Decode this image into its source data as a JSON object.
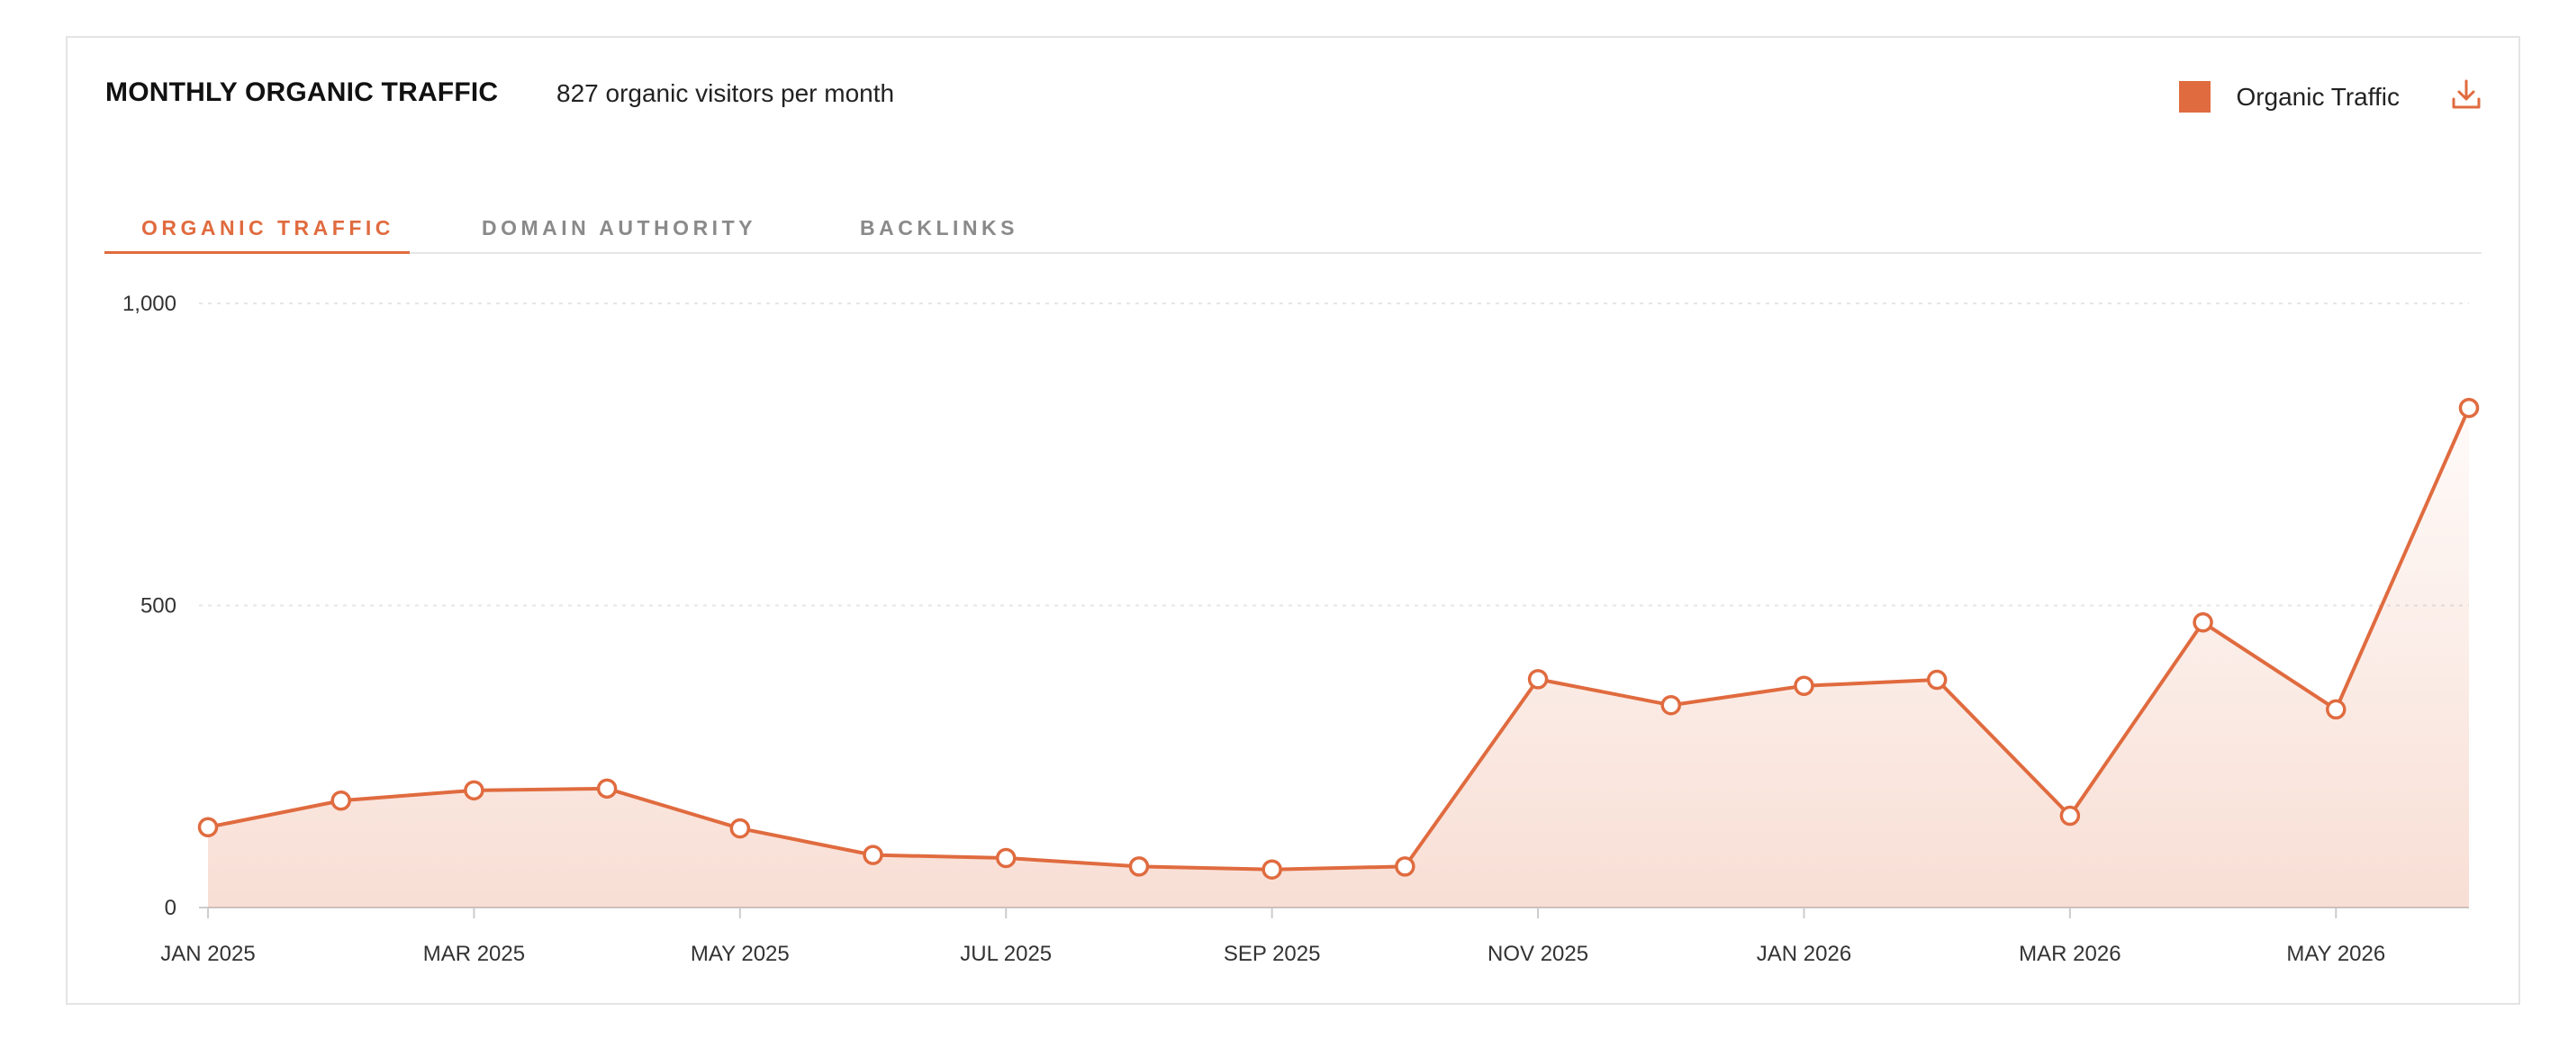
{
  "header": {
    "title": "MONTHLY ORGANIC TRAFFIC",
    "subtitle": "827 organic visitors per month",
    "legend_label": "Organic Traffic",
    "download_icon": "download-icon"
  },
  "tabs": [
    {
      "label": "ORGANIC TRAFFIC",
      "active": true
    },
    {
      "label": "DOMAIN AUTHORITY",
      "active": false
    },
    {
      "label": "BACKLINKS",
      "active": false
    }
  ],
  "colors": {
    "accent": "#E06B3F",
    "grid": "#e6e6e6",
    "axis": "#cccccc"
  },
  "chart_data": {
    "type": "area",
    "title": "MONTHLY ORGANIC TRAFFIC",
    "xlabel": "",
    "ylabel": "",
    "ylim": [
      0,
      1000
    ],
    "yticks": [
      0,
      500,
      1000
    ],
    "ytick_labels": [
      "0",
      "500",
      "1,000"
    ],
    "x": [
      "Jan 2025",
      "Feb 2025",
      "Mar 2025",
      "Apr 2025",
      "May 2025",
      "Jun 2025",
      "Jul 2025",
      "Aug 2025",
      "Sep 2025",
      "Oct 2025",
      "Nov 2025",
      "Dec 2025",
      "Jan 2026",
      "Feb 2026",
      "Mar 2026",
      "Apr 2026",
      "May 2026",
      "Jun 2026"
    ],
    "xtick_labels": [
      "JAN 2025",
      "MAR 2025",
      "MAY 2025",
      "JUL 2025",
      "SEP 2025",
      "NOV 2025",
      "JAN 2026",
      "MAR 2026",
      "MAY 2026"
    ],
    "xtick_indices": [
      0,
      2,
      4,
      6,
      8,
      10,
      12,
      14,
      16
    ],
    "legend_position": "top-right",
    "grid": true,
    "series": [
      {
        "name": "Organic Traffic",
        "values": [
          133,
          177,
          194,
          197,
          131,
          87,
          82,
          68,
          63,
          68,
          378,
          335,
          367,
          377,
          152,
          472,
          328,
          827
        ]
      }
    ]
  }
}
